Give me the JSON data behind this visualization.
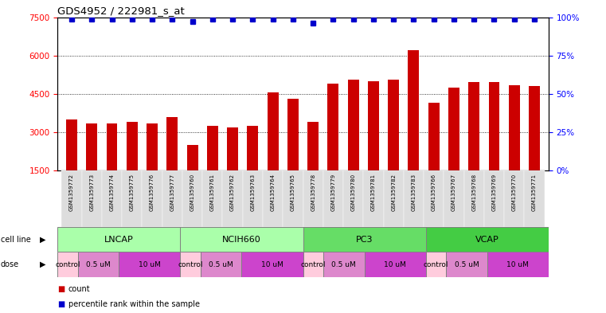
{
  "title": "GDS4952 / 222981_s_at",
  "samples": [
    "GSM1359772",
    "GSM1359773",
    "GSM1359774",
    "GSM1359775",
    "GSM1359776",
    "GSM1359777",
    "GSM1359760",
    "GSM1359761",
    "GSM1359762",
    "GSM1359763",
    "GSM1359764",
    "GSM1359765",
    "GSM1359778",
    "GSM1359779",
    "GSM1359780",
    "GSM1359781",
    "GSM1359782",
    "GSM1359783",
    "GSM1359766",
    "GSM1359767",
    "GSM1359768",
    "GSM1359769",
    "GSM1359770",
    "GSM1359771"
  ],
  "counts": [
    3500,
    3350,
    3350,
    3400,
    3350,
    3600,
    2500,
    3250,
    3200,
    3250,
    4550,
    4300,
    3400,
    4900,
    5050,
    5000,
    5050,
    6200,
    4150,
    4750,
    4950,
    4950,
    4850,
    4800
  ],
  "percentile_ranks": [
    99,
    99,
    99,
    99,
    99,
    99,
    97,
    99,
    99,
    99,
    99,
    99,
    96,
    99,
    99,
    99,
    99,
    99,
    99,
    99,
    99,
    99,
    99,
    99
  ],
  "ylim_left": [
    1500,
    7500
  ],
  "ylim_right": [
    0,
    100
  ],
  "yticks_left": [
    1500,
    3000,
    4500,
    6000,
    7500
  ],
  "yticks_right": [
    0,
    25,
    50,
    75,
    100
  ],
  "bar_color": "#CC0000",
  "dot_color": "#0000CC",
  "cell_lines": [
    {
      "name": "LNCAP",
      "start": 0,
      "end": 6,
      "color": "#AAFFAA"
    },
    {
      "name": "NCIH660",
      "start": 6,
      "end": 12,
      "color": "#AAFFAA"
    },
    {
      "name": "PC3",
      "start": 12,
      "end": 18,
      "color": "#66DD66"
    },
    {
      "name": "VCAP",
      "start": 18,
      "end": 24,
      "color": "#44CC44"
    }
  ],
  "dose_groups": [
    [
      0,
      1,
      "control",
      "#FFCCDD"
    ],
    [
      1,
      2,
      "0.5 uM",
      "#DD88CC"
    ],
    [
      3,
      3,
      "10 uM",
      "#CC44CC"
    ],
    [
      6,
      1,
      "control",
      "#FFCCDD"
    ],
    [
      7,
      2,
      "0.5 uM",
      "#DD88CC"
    ],
    [
      9,
      3,
      "10 uM",
      "#CC44CC"
    ],
    [
      12,
      1,
      "control",
      "#FFCCDD"
    ],
    [
      13,
      2,
      "0.5 uM",
      "#DD88CC"
    ],
    [
      15,
      3,
      "10 uM",
      "#CC44CC"
    ],
    [
      18,
      1,
      "control",
      "#FFCCDD"
    ],
    [
      19,
      2,
      "0.5 uM",
      "#DD88CC"
    ],
    [
      21,
      3,
      "10 uM",
      "#CC44CC"
    ]
  ]
}
